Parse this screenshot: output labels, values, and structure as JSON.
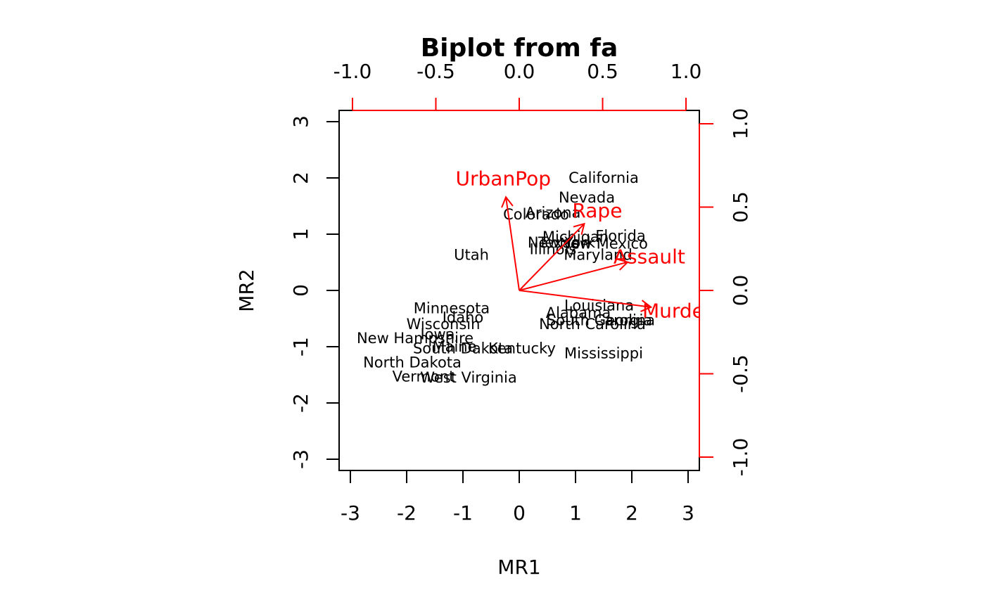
{
  "chart_data": {
    "type": "scatter",
    "title": "Biplot from fa",
    "xlabel": "MR1",
    "ylabel": "MR2",
    "xlim": [
      -3.2,
      3.2
    ],
    "ylim": [
      -3.2,
      3.2
    ],
    "x_ticks": [
      "-3",
      "-2",
      "-1",
      "0",
      "1",
      "2",
      "3"
    ],
    "y_ticks": [
      "-3",
      "-2",
      "-1",
      "0",
      "1",
      "2",
      "3"
    ],
    "loading_axis_lim": [
      -1.08,
      1.08
    ],
    "loading_ticks": [
      "-1.0",
      "-0.5",
      "0.0",
      "0.5",
      "1.0"
    ],
    "grid": false,
    "colors": {
      "scores": "#000000",
      "loadings": "#ff0000"
    },
    "points": [
      {
        "label": "California",
        "x": 1.5,
        "y": 2.0
      },
      {
        "label": "Nevada",
        "x": 1.2,
        "y": 1.65
      },
      {
        "label": "Arizona",
        "x": 0.6,
        "y": 1.38
      },
      {
        "label": "Colorado",
        "x": 0.3,
        "y": 1.35
      },
      {
        "label": "Michigan",
        "x": 1.0,
        "y": 0.95
      },
      {
        "label": "Florida",
        "x": 1.8,
        "y": 0.97
      },
      {
        "label": "New Mexico",
        "x": 1.5,
        "y": 0.83
      },
      {
        "label": "New York",
        "x": 0.75,
        "y": 0.85
      },
      {
        "label": "Texas",
        "x": 0.7,
        "y": 0.85
      },
      {
        "label": "Illinois",
        "x": 0.6,
        "y": 0.73
      },
      {
        "label": "Maryland",
        "x": 1.4,
        "y": 0.63
      },
      {
        "label": "Utah",
        "x": -0.85,
        "y": 0.63
      },
      {
        "label": "Louisiana",
        "x": 1.42,
        "y": -0.27
      },
      {
        "label": "Alabama",
        "x": 1.05,
        "y": -0.4
      },
      {
        "label": "South Carolina",
        "x": 1.45,
        "y": -0.53
      },
      {
        "label": "Georgia",
        "x": 1.85,
        "y": -0.53
      },
      {
        "label": "North Carolina",
        "x": 1.3,
        "y": -0.6
      },
      {
        "label": "Mississippi",
        "x": 1.5,
        "y": -1.12
      },
      {
        "label": "Minnesota",
        "x": -1.2,
        "y": -0.32
      },
      {
        "label": "Idaho",
        "x": -1.0,
        "y": -0.48
      },
      {
        "label": "Wisconsin",
        "x": -1.35,
        "y": -0.6
      },
      {
        "label": "Iowa",
        "x": -1.45,
        "y": -0.78
      },
      {
        "label": "New Hampshire",
        "x": -1.85,
        "y": -0.85
      },
      {
        "label": "Maine",
        "x": -1.15,
        "y": -1.0
      },
      {
        "label": "South Dakota",
        "x": -1.0,
        "y": -1.03
      },
      {
        "label": "Kentucky",
        "x": 0.05,
        "y": -1.03
      },
      {
        "label": "North Dakota",
        "x": -1.9,
        "y": -1.28
      },
      {
        "label": "Vermont",
        "x": -1.7,
        "y": -1.53
      },
      {
        "label": "West Virginia",
        "x": -0.9,
        "y": -1.55
      }
    ],
    "loadings": [
      {
        "label": "UrbanPop",
        "x": -0.08,
        "y": 0.56
      },
      {
        "label": "Rape",
        "x": 0.39,
        "y": 0.4
      },
      {
        "label": "Assault",
        "x": 0.65,
        "y": 0.17
      },
      {
        "label": "Murder",
        "x": 0.79,
        "y": -0.1
      }
    ]
  }
}
